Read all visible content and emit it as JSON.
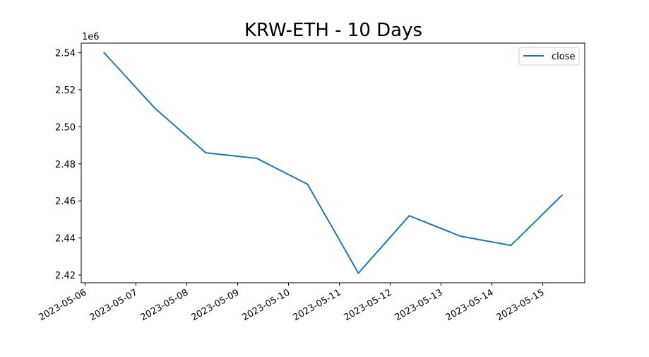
{
  "chart_data": {
    "type": "line",
    "title": "KRW-ETH - 10 Days",
    "xlabel": "",
    "ylabel": "",
    "y_offset_label": "1e6",
    "x": [
      "2023-05-06T09:00",
      "2023-05-07T09:00",
      "2023-05-08T09:00",
      "2023-05-09T09:00",
      "2023-05-10T09:00",
      "2023-05-11T09:00",
      "2023-05-12T09:00",
      "2023-05-13T09:00",
      "2023-05-14T09:00",
      "2023-05-15T09:00"
    ],
    "series": [
      {
        "name": "close",
        "color": "#1f77b4",
        "values": [
          2540000,
          2510000,
          2486000,
          2483000,
          2469000,
          2421000,
          2452000,
          2441000,
          2436000,
          2463000
        ]
      }
    ],
    "x_ticks": [
      "2023-05-06",
      "2023-05-07",
      "2023-05-08",
      "2023-05-09",
      "2023-05-10",
      "2023-05-11",
      "2023-05-12",
      "2023-05-13",
      "2023-05-14",
      "2023-05-15"
    ],
    "y_ticks": [
      2.42,
      2.44,
      2.46,
      2.48,
      2.5,
      2.52,
      2.54
    ],
    "y_tick_labels": [
      "2.42",
      "2.44",
      "2.46",
      "2.48",
      "2.50",
      "2.52",
      "2.54"
    ],
    "ylim": [
      2415800,
      2545200
    ],
    "xlim": [
      "2023-05-05T22:12",
      "2023-05-15T19:48"
    ],
    "grid": false,
    "legend_position": "upper right"
  }
}
